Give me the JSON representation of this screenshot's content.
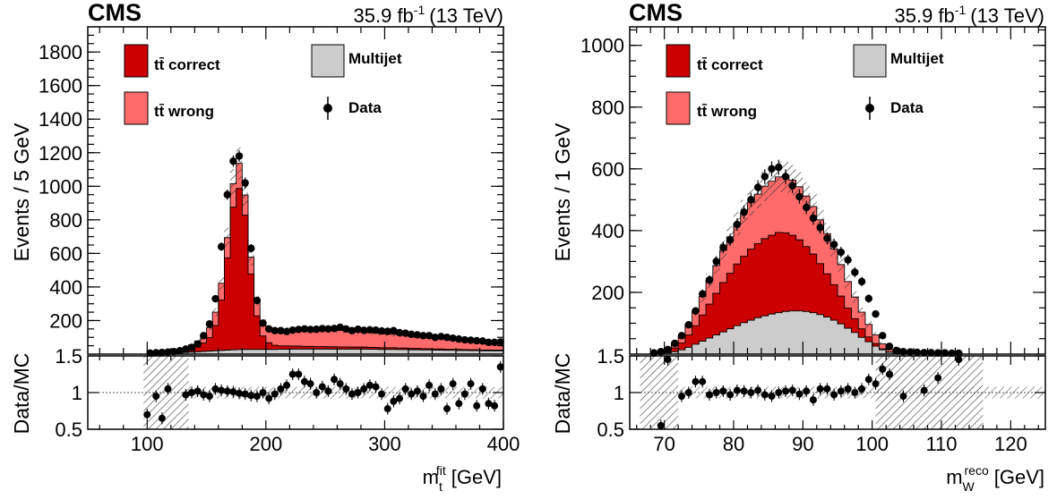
{
  "colors": {
    "tt_correct": "#cc0000",
    "tt_wrong": "#ff6b6b",
    "multijet": "#cccccc",
    "data": "#000000"
  },
  "chart_data": [
    {
      "type": "histogram",
      "header": {
        "experiment": "CMS",
        "lumi_main": "35.9 fb",
        "lumi_sup": "-1",
        "energy": "(13 TeV)"
      },
      "ylabel": "Events / 5 GeV",
      "ratio_ylabel": "Data/MC",
      "xlabel_main": "m",
      "xlabel_sub": "t",
      "xlabel_sup": "fit",
      "xlabel_unit": "[GeV]",
      "xlim": [
        50,
        400
      ],
      "ylim": [
        0,
        1950
      ],
      "ratio_ylim": [
        0.5,
        1.5
      ],
      "x_ticks": [
        100,
        200,
        300,
        400
      ],
      "y_ticks": [
        200,
        400,
        600,
        800,
        1000,
        1200,
        1400,
        1600,
        1800
      ],
      "ratio_ticks": [
        0.5,
        1,
        1.5
      ],
      "legend": [
        {
          "key": "tt_correct",
          "label": "tt̄ correct"
        },
        {
          "key": "multijet",
          "label": "Multijet"
        },
        {
          "key": "tt_wrong",
          "label": "tt̄ wrong"
        },
        {
          "key": "data",
          "label": "Data"
        }
      ],
      "bin_edges_start": 100,
      "bin_width": 5,
      "series": [
        {
          "name": "Multijet",
          "values": [
            2,
            3,
            4,
            5,
            6,
            8,
            10,
            12,
            14,
            16,
            18,
            20,
            22,
            24,
            26,
            27,
            28,
            28,
            28,
            28,
            28,
            28,
            29,
            29,
            30,
            30,
            30,
            30,
            30,
            30,
            30,
            30,
            30,
            30,
            30,
            30,
            30,
            29,
            29,
            28,
            28,
            28,
            27,
            27,
            26,
            26,
            25,
            25,
            24,
            24,
            23,
            23,
            22,
            22,
            21,
            21,
            20,
            20,
            20,
            20
          ]
        },
        {
          "name": "tt̄ correct",
          "values": [
            1,
            2,
            3,
            4,
            6,
            8,
            12,
            20,
            30,
            50,
            80,
            150,
            300,
            550,
            850,
            960,
            800,
            450,
            200,
            80,
            40,
            25,
            20,
            20,
            18,
            18,
            16,
            16,
            15,
            15,
            14,
            14,
            13,
            13,
            12,
            12,
            12,
            11,
            11,
            10,
            10,
            10,
            9,
            9,
            8,
            8,
            8,
            7,
            7,
            7,
            6,
            6,
            6,
            5,
            5,
            5,
            5,
            5,
            4,
            4
          ]
        },
        {
          "name": "tt̄ wrong",
          "values": [
            1,
            2,
            3,
            4,
            6,
            10,
            16,
            24,
            34,
            46,
            60,
            80,
            100,
            120,
            140,
            150,
            120,
            100,
            90,
            85,
            85,
            90,
            92,
            95,
            95,
            98,
            98,
            100,
            100,
            100,
            100,
            98,
            98,
            96,
            94,
            92,
            90,
            88,
            86,
            84,
            82,
            80,
            78,
            76,
            74,
            72,
            70,
            68,
            66,
            64,
            62,
            60,
            58,
            56,
            54,
            52,
            50,
            48,
            46,
            44
          ]
        }
      ],
      "data_points": [
        6,
        8,
        10,
        12,
        15,
        20,
        30,
        40,
        60,
        110,
        180,
        330,
        640,
        950,
        1150,
        1180,
        1020,
        630,
        320,
        185,
        150,
        140,
        140,
        135,
        143,
        147,
        150,
        147,
        148,
        152,
        150,
        153,
        160,
        150,
        140,
        148,
        142,
        145,
        143,
        138,
        136,
        140,
        128,
        125,
        118,
        115,
        110,
        110,
        100,
        105,
        100,
        95,
        90,
        85,
        83,
        80,
        78,
        70,
        70,
        72
      ],
      "ratio_points": [
        {
          "x": 100,
          "y": 0.7
        },
        {
          "x": 107.5,
          "y": 0.95
        },
        {
          "x": 112.5,
          "y": 0.65
        },
        {
          "x": 117.5,
          "y": 1.05
        },
        {
          "x": 132.5,
          "y": 0.97
        },
        {
          "x": 137.5,
          "y": 1.0
        },
        {
          "x": 142.5,
          "y": 1.02
        },
        {
          "x": 147.5,
          "y": 0.97
        },
        {
          "x": 152.5,
          "y": 0.95
        },
        {
          "x": 157.5,
          "y": 1.05
        },
        {
          "x": 162.5,
          "y": 1.03
        },
        {
          "x": 167.5,
          "y": 1.02
        },
        {
          "x": 172.5,
          "y": 1.01
        },
        {
          "x": 177.5,
          "y": 0.99
        },
        {
          "x": 182.5,
          "y": 0.98
        },
        {
          "x": 187.5,
          "y": 0.96
        },
        {
          "x": 192.5,
          "y": 0.95
        },
        {
          "x": 197.5,
          "y": 1.0
        },
        {
          "x": 202.5,
          "y": 0.92
        },
        {
          "x": 207.5,
          "y": 0.98
        },
        {
          "x": 212.5,
          "y": 1.05
        },
        {
          "x": 217.5,
          "y": 1.1
        },
        {
          "x": 222.5,
          "y": 1.25
        },
        {
          "x": 227.5,
          "y": 1.25
        },
        {
          "x": 232.5,
          "y": 1.15
        },
        {
          "x": 237.5,
          "y": 1.12
        },
        {
          "x": 242.5,
          "y": 1.0
        },
        {
          "x": 247.5,
          "y": 1.08
        },
        {
          "x": 252.5,
          "y": 1.02
        },
        {
          "x": 257.5,
          "y": 1.18
        },
        {
          "x": 262.5,
          "y": 1.12
        },
        {
          "x": 267.5,
          "y": 1.05
        },
        {
          "x": 272.5,
          "y": 0.98
        },
        {
          "x": 277.5,
          "y": 1.0
        },
        {
          "x": 282.5,
          "y": 1.05
        },
        {
          "x": 287.5,
          "y": 1.1
        },
        {
          "x": 292.5,
          "y": 1.08
        },
        {
          "x": 297.5,
          "y": 0.98
        },
        {
          "x": 302.5,
          "y": 0.78
        },
        {
          "x": 307.5,
          "y": 0.88
        },
        {
          "x": 312.5,
          "y": 0.92
        },
        {
          "x": 317.5,
          "y": 1.05
        },
        {
          "x": 322.5,
          "y": 0.98
        },
        {
          "x": 327.5,
          "y": 1.02
        },
        {
          "x": 332.5,
          "y": 0.95
        },
        {
          "x": 337.5,
          "y": 1.1
        },
        {
          "x": 342.5,
          "y": 0.98
        },
        {
          "x": 347.5,
          "y": 1.05
        },
        {
          "x": 352.5,
          "y": 0.78
        },
        {
          "x": 357.5,
          "y": 1.12
        },
        {
          "x": 362.5,
          "y": 0.85
        },
        {
          "x": 367.5,
          "y": 0.98
        },
        {
          "x": 372.5,
          "y": 1.12
        },
        {
          "x": 377.5,
          "y": 0.82
        },
        {
          "x": 382.5,
          "y": 1.05
        },
        {
          "x": 387.5,
          "y": 0.85
        },
        {
          "x": 392.5,
          "y": 0.82
        },
        {
          "x": 397.5,
          "y": 1.35
        }
      ],
      "ratio_band_ranges": [
        [
          97,
          135
        ]
      ]
    },
    {
      "type": "histogram",
      "header": {
        "experiment": "CMS",
        "lumi_main": "35.9 fb",
        "lumi_sup": "-1",
        "energy": "(13 TeV)"
      },
      "ylabel": "Events / 1 GeV",
      "ratio_ylabel": "Data/MC",
      "xlabel_main": "m",
      "xlabel_sub": "W",
      "xlabel_sup": "reco",
      "xlabel_unit": "[GeV]",
      "xlim": [
        65,
        125
      ],
      "ylim": [
        0,
        1060
      ],
      "ratio_ylim": [
        0.5,
        1.5
      ],
      "x_ticks": [
        70,
        80,
        90,
        100,
        110,
        120
      ],
      "y_ticks": [
        200,
        400,
        600,
        800,
        1000
      ],
      "ratio_ticks": [
        0.5,
        1,
        1.5
      ],
      "legend": [
        {
          "key": "tt_correct",
          "label": "tt̄ correct"
        },
        {
          "key": "multijet",
          "label": "Multijet"
        },
        {
          "key": "tt_wrong",
          "label": "tt̄ wrong"
        },
        {
          "key": "data",
          "label": "Data"
        }
      ],
      "bin_edges_start": 68,
      "bin_width": 1,
      "series": [
        {
          "name": "Multijet",
          "values": [
            1,
            2,
            4,
            8,
            14,
            22,
            32,
            42,
            52,
            62,
            72,
            82,
            92,
            102,
            110,
            118,
            124,
            130,
            134,
            138,
            140,
            140,
            138,
            134,
            128,
            120,
            110,
            98,
            84,
            70,
            54,
            40,
            26,
            14,
            6,
            3,
            1,
            1,
            1,
            1,
            1,
            1,
            1,
            1,
            1
          ]
        },
        {
          "name": "tt̄ correct",
          "values": [
            1,
            2,
            5,
            12,
            22,
            40,
            60,
            85,
            110,
            135,
            160,
            180,
            200,
            215,
            230,
            240,
            250,
            255,
            260,
            255,
            245,
            230,
            210,
            190,
            165,
            140,
            115,
            90,
            65,
            45,
            28,
            16,
            8,
            3,
            1,
            0,
            0,
            0,
            0,
            0,
            0,
            0,
            0,
            0,
            0
          ]
        },
        {
          "name": "tt̄ wrong",
          "values": [
            2,
            4,
            8,
            14,
            22,
            34,
            46,
            60,
            76,
            90,
            104,
            118,
            130,
            142,
            152,
            160,
            170,
            175,
            180,
            180,
            178,
            172,
            164,
            154,
            142,
            130,
            116,
            102,
            86,
            70,
            54,
            40,
            28,
            16,
            8,
            4,
            2,
            1,
            1,
            1,
            1,
            0,
            0,
            0,
            0
          ]
        }
      ],
      "data_points": [
        4,
        8,
        15,
        35,
        60,
        95,
        140,
        195,
        240,
        300,
        345,
        370,
        420,
        460,
        500,
        540,
        575,
        600,
        605,
        575,
        545,
        510,
        475,
        440,
        410,
        375,
        355,
        330,
        305,
        265,
        235,
        180,
        130,
        60,
        25,
        12,
        8,
        7,
        6,
        5,
        5,
        4,
        4,
        3,
        3
      ],
      "ratio_points": [
        {
          "x": 69.5,
          "y": 0.55
        },
        {
          "x": 70.5,
          "y": 1.45
        },
        {
          "x": 72.5,
          "y": 0.95
        },
        {
          "x": 73.5,
          "y": 1.0
        },
        {
          "x": 74.5,
          "y": 1.15
        },
        {
          "x": 75.5,
          "y": 1.15
        },
        {
          "x": 76.5,
          "y": 0.97
        },
        {
          "x": 77.5,
          "y": 1.0
        },
        {
          "x": 78.5,
          "y": 1.02
        },
        {
          "x": 79.5,
          "y": 0.97
        },
        {
          "x": 80.5,
          "y": 1.03
        },
        {
          "x": 81.5,
          "y": 1.02
        },
        {
          "x": 82.5,
          "y": 1.0
        },
        {
          "x": 83.5,
          "y": 1.03
        },
        {
          "x": 84.5,
          "y": 0.97
        },
        {
          "x": 85.5,
          "y": 0.95
        },
        {
          "x": 86.5,
          "y": 1.0
        },
        {
          "x": 87.5,
          "y": 1.02
        },
        {
          "x": 88.5,
          "y": 1.03
        },
        {
          "x": 89.5,
          "y": 0.98
        },
        {
          "x": 90.5,
          "y": 1.02
        },
        {
          "x": 91.5,
          "y": 0.9
        },
        {
          "x": 92.5,
          "y": 1.05
        },
        {
          "x": 93.5,
          "y": 1.05
        },
        {
          "x": 94.5,
          "y": 0.97
        },
        {
          "x": 95.5,
          "y": 1.02
        },
        {
          "x": 96.5,
          "y": 1.05
        },
        {
          "x": 97.5,
          "y": 1.0
        },
        {
          "x": 98.5,
          "y": 1.05
        },
        {
          "x": 99.5,
          "y": 1.18
        },
        {
          "x": 100.5,
          "y": 1.12
        },
        {
          "x": 101.5,
          "y": 1.32
        },
        {
          "x": 102.5,
          "y": 1.25
        },
        {
          "x": 104.5,
          "y": 0.95
        },
        {
          "x": 107.5,
          "y": 1.03
        },
        {
          "x": 109.5,
          "y": 1.2
        },
        {
          "x": 112.5,
          "y": 1.45
        }
      ],
      "ratio_band_ranges": [
        [
          66.5,
          72
        ],
        [
          100.5,
          116
        ]
      ]
    }
  ]
}
